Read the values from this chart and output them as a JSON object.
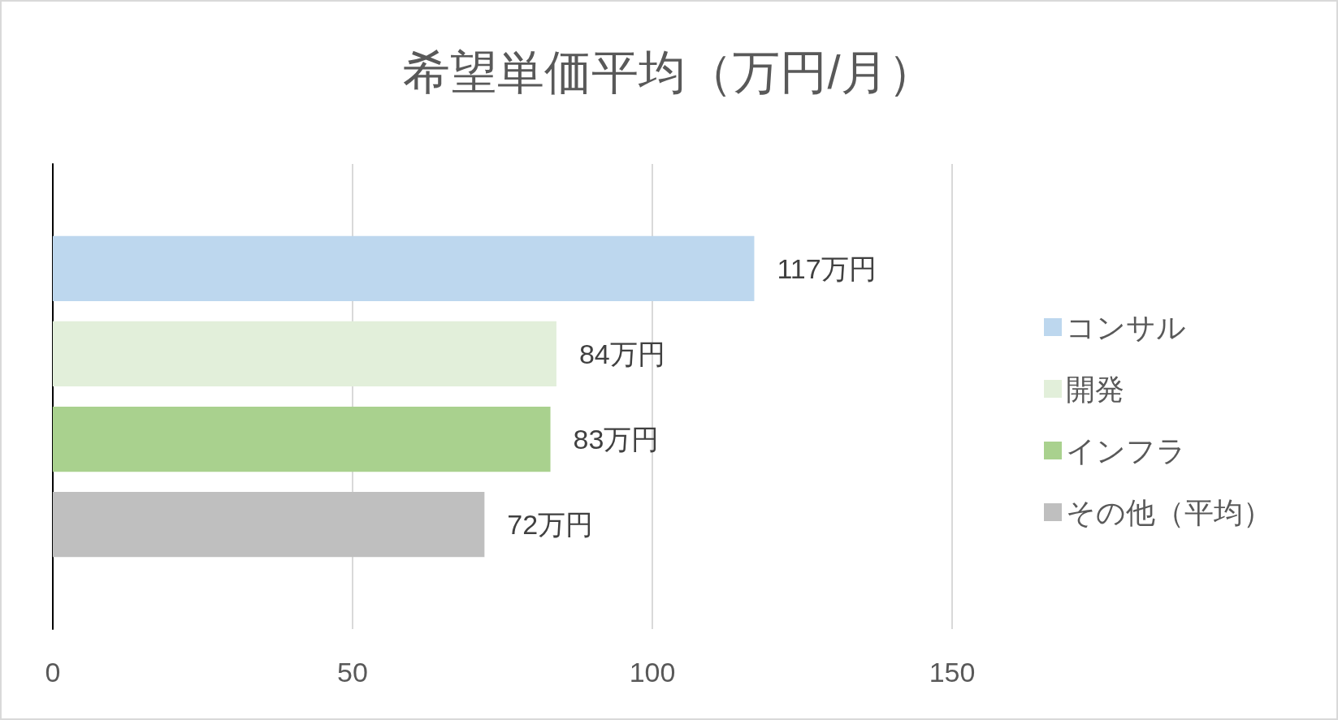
{
  "chart_data": {
    "type": "bar",
    "orientation": "horizontal",
    "title": "希望単価平均（万円/月）",
    "categories": [
      null
    ],
    "series": [
      {
        "name": "コンサル",
        "color": "#bdd7ee",
        "values": [
          117
        ],
        "value_labels": [
          "117万円"
        ]
      },
      {
        "name": "開発",
        "color": "#e2efda",
        "values": [
          84
        ],
        "value_labels": [
          "84万円"
        ]
      },
      {
        "name": "インフラ",
        "color": "#a9d18e",
        "values": [
          83
        ],
        "value_labels": [
          "83万円"
        ]
      },
      {
        "name": "その他（平均）",
        "color": "#bfbfbf",
        "values": [
          72
        ],
        "value_labels": [
          "72万円"
        ]
      }
    ],
    "xlim": [
      0,
      150
    ],
    "xticks": [
      0,
      50,
      100,
      150
    ],
    "grid": "x",
    "legend": "right",
    "tick_labels": "x"
  }
}
